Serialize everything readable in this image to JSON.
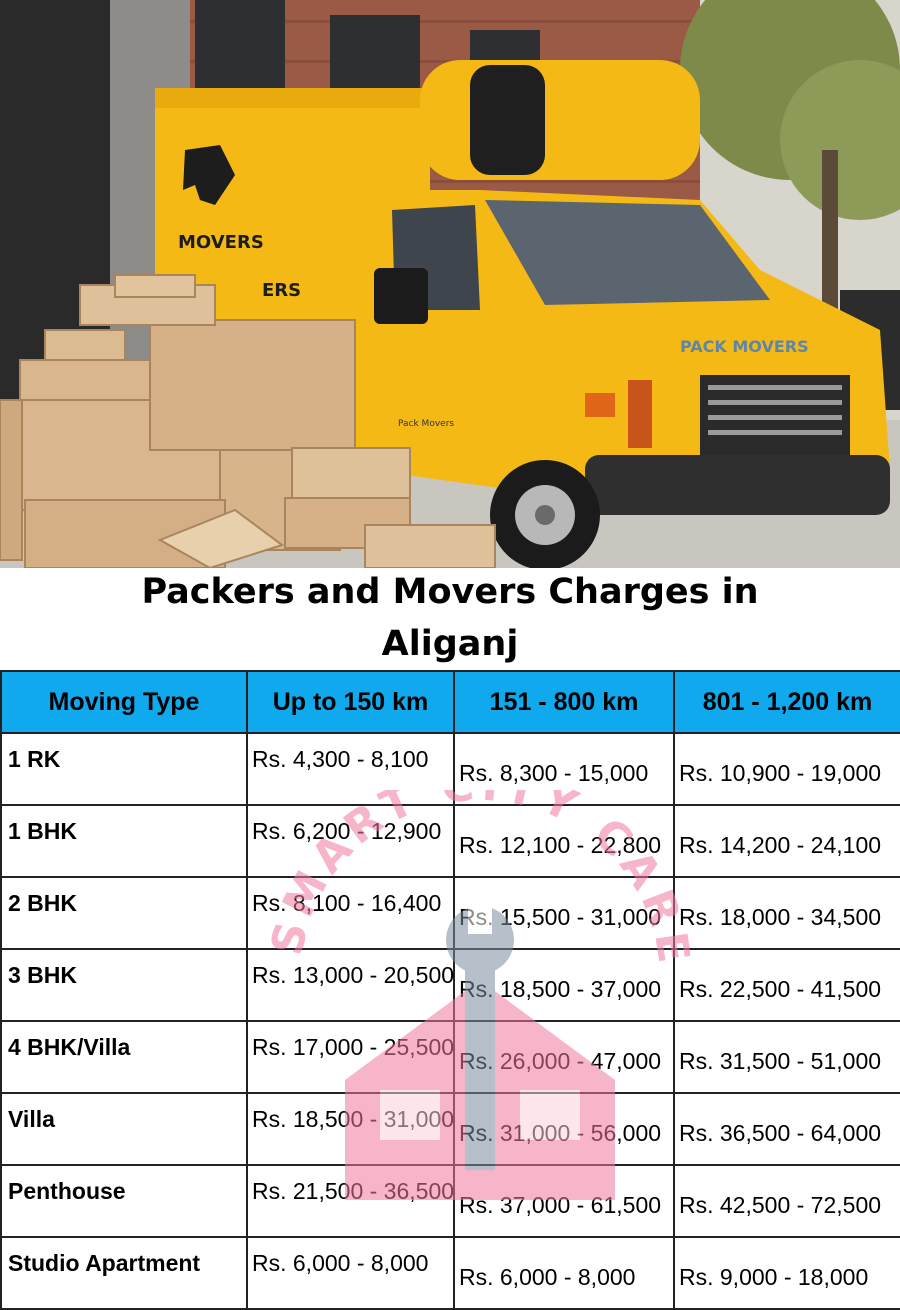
{
  "hero": {
    "truck_side_logo_text": "MOVERS",
    "truck_side_text_2": "ERS",
    "truck_hood_text": "PACK MOVERS",
    "truck_door_text": "Pack Movers",
    "colors": {
      "truck": "#f5b916",
      "sky": "#d9d4cc",
      "brick": "#9a5a45",
      "box": "#d6b48c"
    }
  },
  "title": {
    "line1": "Packers and Movers Charges in",
    "line2": "Aliganj"
  },
  "table": {
    "header_color": "#10a9ee",
    "columns": [
      "Moving Type",
      "Up to 150 km",
      "151 - 800 km",
      "801 - 1,200 km"
    ],
    "rows": [
      {
        "type": "1 RK",
        "c1": "Rs. 4,300 - 8,100",
        "c2": "Rs. 8,300 - 15,000",
        "c3": "Rs. 10,900 - 19,000"
      },
      {
        "type": "1 BHK",
        "c1": "Rs. 6,200 - 12,900",
        "c2": "Rs. 12,100 - 22,800",
        "c3": "Rs. 14,200 - 24,100"
      },
      {
        "type": "2 BHK",
        "c1": "Rs. 8,100 - 16,400",
        "c2": "Rs. 15,500 - 31,000",
        "c3": "Rs. 18,000 - 34,500"
      },
      {
        "type": "3 BHK",
        "c1": "Rs. 13,000 - 20,500",
        "c2": "Rs. 18,500 - 37,000",
        "c3": "Rs. 22,500 - 41,500"
      },
      {
        "type": "4 BHK/Villa",
        "c1": "Rs. 17,000 - 25,500",
        "c2": "Rs. 26,000 - 47,000",
        "c3": "Rs. 31,500 - 51,000"
      },
      {
        "type": "Villa",
        "c1": "Rs. 18,500 - 31,000",
        "c2": "Rs. 31,000 - 56,000",
        "c3": "Rs. 36,500 - 64,000"
      },
      {
        "type": "Penthouse",
        "c1": "Rs. 21,500 - 36,500",
        "c2": "Rs. 37,000 - 61,500",
        "c3": "Rs. 42,500 - 72,500"
      },
      {
        "type": "Studio Apartment",
        "c1": "Rs. 6,000 - 8,000",
        "c2": "Rs. 6,000 - 8,000",
        "c3": "Rs. 9,000 - 18,000"
      }
    ]
  },
  "watermark": {
    "text": "SMART CITY CARE",
    "colors": {
      "text": "#f07a9c",
      "house": "#f07a9c",
      "wrench": "#7a8ea0"
    }
  }
}
